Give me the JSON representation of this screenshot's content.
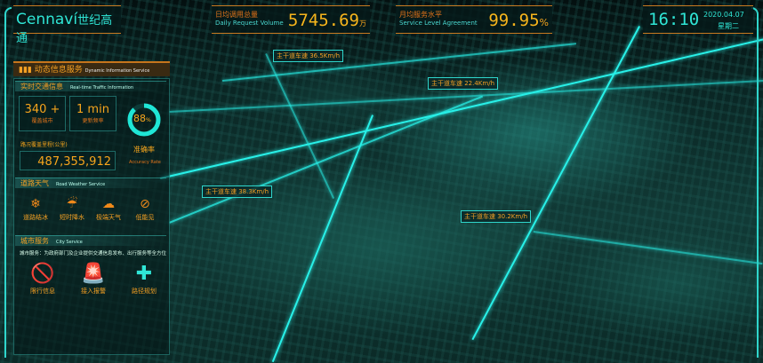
{
  "brand": {
    "logo": "Cennaví",
    "logo_cn": "世纪高通"
  },
  "top_stats": [
    {
      "label": "日均调用总量",
      "sublabel": "Daily Request Volume",
      "value": "5745.69",
      "unit": "万"
    },
    {
      "label": "月均服务水平",
      "sublabel": "Service Level Agreement",
      "value": "99.95",
      "unit": "%"
    }
  ],
  "clock": {
    "time": "16:10",
    "date": "2020.04.07",
    "weekday": "星期二"
  },
  "panel": {
    "title": "动态信息服务",
    "title_en": "Dynamic Information Service",
    "realtime": {
      "title": "实时交通信息",
      "title_en": "Real-time Traffic Information",
      "cities_value": "340 +",
      "cities_label": "覆盖城市",
      "freq_value": "1 min",
      "freq_label": "更新频率",
      "accuracy_value": "88",
      "accuracy_unit": "%",
      "accuracy_percent": 88,
      "accuracy_label": "准确率",
      "accuracy_label_en": "Accuracy Rate",
      "mileage_label": "路况覆盖里程(公里)",
      "mileage_value": "487,355,912"
    },
    "weather": {
      "title": "道路天气",
      "title_en": "Road Weather Service",
      "items": [
        {
          "label": "道路结冰",
          "icon": "road-ice-icon"
        },
        {
          "label": "短时降水",
          "icon": "rain-cloud-icon"
        },
        {
          "label": "极端天气",
          "icon": "storm-icon"
        },
        {
          "label": "低能见",
          "icon": "low-visibility-icon"
        }
      ]
    },
    "city": {
      "title": "城市服务",
      "title_en": "City Service",
      "desc": "城市服务：为政府部门及企业提供交通信息发布、出行服务等全方位交通解决方案。",
      "items": [
        {
          "label": "限行信息",
          "icon": "no-vehicle-icon"
        },
        {
          "label": "接入报警",
          "icon": "alarm-light-icon"
        },
        {
          "label": "路径规划",
          "icon": "route-cross-icon"
        }
      ]
    }
  },
  "map_labels": [
    {
      "text": "主干道车速 36.5Km/h"
    },
    {
      "text": "主干道车速 22.4Km/h"
    },
    {
      "text": "主干道车速 38.3Km/h"
    },
    {
      "text": "主干道车速 30.2Km/h"
    }
  ],
  "colors": {
    "accent": "#2fe6d6",
    "highlight": "#f7b51c",
    "alert": "#e3741a"
  }
}
